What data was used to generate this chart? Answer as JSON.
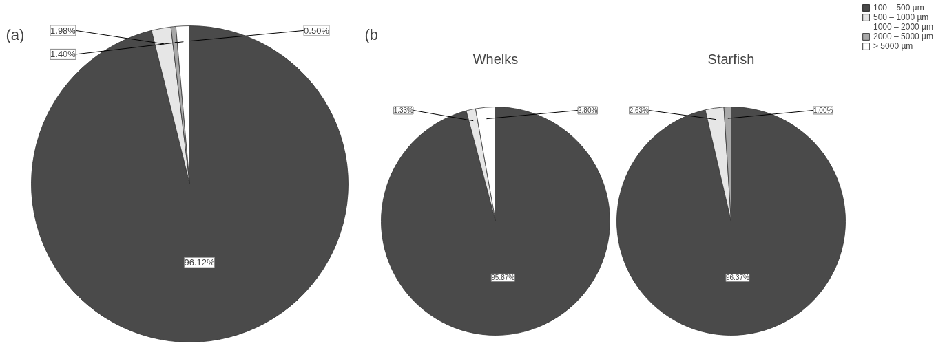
{
  "chart_data": [
    {
      "type": "pie",
      "annotations": [
        "(a)"
      ],
      "categories": [
        "100 – 500 µm",
        "500 – 1000 µm",
        "1000 – 2000 µm",
        "2000 – 5000 µm",
        "> 5000 µm"
      ],
      "values": [
        96.12,
        1.98,
        null,
        0.5,
        1.4
      ],
      "value_labels": [
        "96.12%",
        "1.98%",
        null,
        "0.50%",
        "1.40%"
      ],
      "colors": [
        "#4a4a4a",
        "#e6e6e6",
        "#222222",
        "#a8a8a8",
        "#ffffff"
      ],
      "legend": "top right"
    },
    {
      "type": "pie",
      "title": "Whelks",
      "annotations": [
        "(b"
      ],
      "categories": [
        null,
        null,
        null,
        null,
        null
      ],
      "values": [
        95.87,
        1.33,
        null,
        null,
        2.8
      ],
      "value_labels": [
        "95.87%",
        "1.33%",
        null,
        null,
        "2.80%"
      ],
      "colors": [
        "#4a4a4a",
        "#e6e6e6",
        "#222222",
        "#a8a8a8",
        "#ffffff"
      ]
    },
    {
      "type": "pie",
      "title": "Starfish",
      "categories": [
        null,
        null,
        null,
        null,
        null
      ],
      "values": [
        96.37,
        2.63,
        null,
        1.0,
        null
      ],
      "value_labels": [
        "96.37%",
        "2.63%",
        null,
        "1.00%",
        null
      ],
      "colors": [
        "#4a4a4a",
        "#e6e6e6",
        "#222222",
        "#a8a8a8",
        "#ffffff"
      ]
    }
  ]
}
